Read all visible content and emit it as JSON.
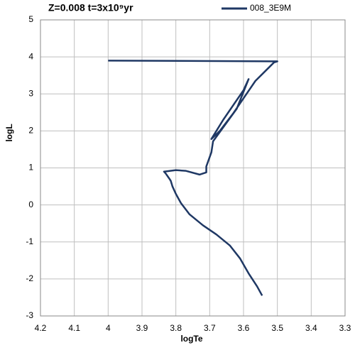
{
  "chart_data": {
    "type": "line",
    "title": "Z=0.008 t=3x10⁹yr",
    "x_label": "logTe",
    "y_label": "logL",
    "xlim": [
      4.2,
      3.3
    ],
    "xticks": [
      4.2,
      4.1,
      4,
      3.9,
      3.8,
      3.7,
      3.6,
      3.5,
      3.4,
      3.3
    ],
    "ylim": [
      -3,
      5
    ],
    "yticks": [
      -3,
      -2,
      -1,
      0,
      1,
      2,
      3,
      4,
      5
    ],
    "grid": true,
    "legend": "top-right",
    "series": [
      {
        "name": "008_3E9M",
        "color": "#1f3864",
        "x": [
          3.545,
          3.56,
          3.585,
          3.61,
          3.64,
          3.68,
          3.72,
          3.76,
          3.785,
          3.8,
          3.81,
          3.815,
          3.82,
          3.83,
          3.835,
          3.8,
          3.77,
          3.73,
          3.71,
          3.71,
          3.695,
          3.69,
          3.62,
          3.585,
          3.6,
          3.66,
          3.695,
          3.67,
          3.63,
          3.565,
          3.51,
          3.5,
          4.0
        ],
        "values": [
          -2.45,
          -2.2,
          -1.85,
          -1.45,
          -1.1,
          -0.8,
          -0.55,
          -0.25,
          0.05,
          0.3,
          0.5,
          0.65,
          0.72,
          0.85,
          0.9,
          0.94,
          0.92,
          0.82,
          0.88,
          1.04,
          1.42,
          1.72,
          2.6,
          3.4,
          3.1,
          2.3,
          1.78,
          2.0,
          2.48,
          3.35,
          3.85,
          3.88,
          3.9
        ]
      }
    ]
  }
}
